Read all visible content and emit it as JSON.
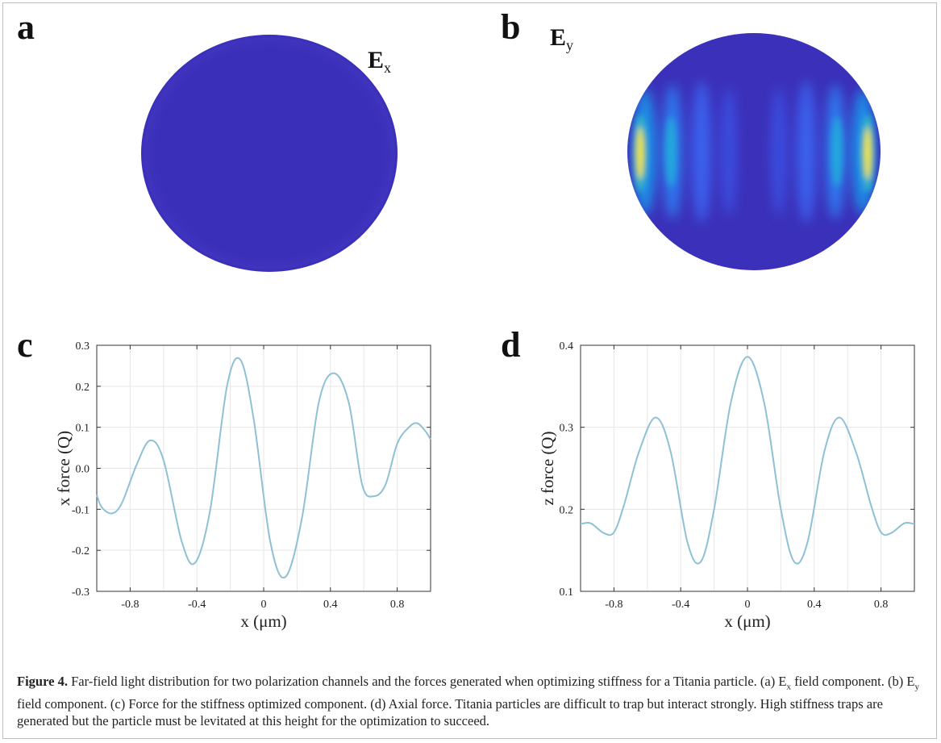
{
  "panels": {
    "a": {
      "letter": "a",
      "field_label": "E",
      "field_sub": "x"
    },
    "b": {
      "letter": "b",
      "field_label": "E",
      "field_sub": "y"
    },
    "c": {
      "letter": "c"
    },
    "d": {
      "letter": "d"
    }
  },
  "colors": {
    "background_field": "#3a2fb8",
    "line": "#8ec1d6",
    "peak": "#f4e31a"
  },
  "chart_data": [
    {
      "type": "line",
      "panel": "c",
      "xlabel": "x (μm)",
      "ylabel": "x force (Q)",
      "xlim": [
        -1.0,
        1.0
      ],
      "ylim": [
        -0.3,
        0.3
      ],
      "x_ticks": [
        "-0.8",
        "-0.4",
        "0",
        "0.4",
        "0.8"
      ],
      "y_ticks": [
        "-0.3",
        "-0.2",
        "-0.1",
        "0.0",
        "0.1",
        "0.2",
        "0.3"
      ],
      "grid": true,
      "x": [
        -1.0,
        -0.97,
        -0.91,
        -0.85,
        -0.76,
        -0.68,
        -0.6,
        -0.49,
        -0.41,
        -0.32,
        -0.22,
        -0.14,
        -0.06,
        0.04,
        0.13,
        0.23,
        0.33,
        0.42,
        0.51,
        0.59,
        0.66,
        0.73,
        0.8,
        0.87,
        0.92,
        0.97,
        1.0
      ],
      "y": [
        -0.065,
        -0.095,
        -0.11,
        -0.085,
        0.01,
        0.068,
        0.02,
        -0.18,
        -0.23,
        -0.1,
        0.2,
        0.265,
        0.12,
        -0.18,
        -0.265,
        -0.12,
        0.16,
        0.232,
        0.16,
        -0.04,
        -0.068,
        -0.04,
        0.06,
        0.1,
        0.11,
        0.09,
        0.07
      ]
    },
    {
      "type": "line",
      "panel": "d",
      "xlabel": "x (μm)",
      "ylabel": "z force (Q)",
      "xlim": [
        -1.0,
        1.0
      ],
      "ylim": [
        0.1,
        0.4
      ],
      "x_ticks": [
        "-0.8",
        "-0.4",
        "0",
        "0.4",
        "0.8"
      ],
      "y_ticks": [
        "0.1",
        "0.2",
        "0.3",
        "0.4"
      ],
      "grid": true,
      "x": [
        -1.0,
        -0.94,
        -0.86,
        -0.8,
        -0.74,
        -0.65,
        -0.55,
        -0.46,
        -0.36,
        -0.28,
        -0.2,
        -0.1,
        0.0,
        0.1,
        0.2,
        0.28,
        0.36,
        0.46,
        0.55,
        0.65,
        0.74,
        0.8,
        0.86,
        0.94,
        1.0
      ],
      "y": [
        0.182,
        0.183,
        0.171,
        0.172,
        0.205,
        0.27,
        0.312,
        0.27,
        0.16,
        0.136,
        0.2,
        0.33,
        0.386,
        0.33,
        0.2,
        0.136,
        0.16,
        0.27,
        0.312,
        0.27,
        0.205,
        0.172,
        0.171,
        0.183,
        0.182
      ]
    }
  ],
  "caption": {
    "label": "Figure 4.",
    "text": "Far-field light distribution for two polarization channels and the forces generated when optimizing stiffness for a Titania particle. (a) E",
    "sub1": "x",
    "text2": " field component. (b) E",
    "sub2": "y",
    "text3": " field component. (c) Force for the stiffness optimized component. (d) Axial force. Titania particles are difficult to trap but interact strongly. High stiffness traps are generated but the particle must be levitated at this height for the optimization to succeed."
  }
}
